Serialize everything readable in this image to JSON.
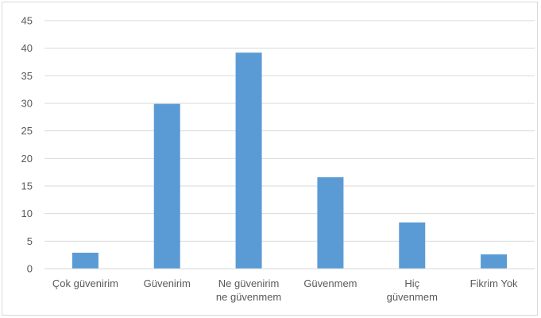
{
  "chart_data": {
    "type": "bar",
    "categories": [
      [
        "Çok güvenirim"
      ],
      [
        "Güvenirim"
      ],
      [
        "Ne güvenirim",
        "ne güvenmem"
      ],
      [
        "Güvenmem"
      ],
      [
        "Hiç",
        "güvenmem"
      ],
      [
        "Fikrim Yok"
      ]
    ],
    "values": [
      2.9,
      29.9,
      39.2,
      16.6,
      8.4,
      2.6
    ],
    "ylim": [
      0,
      45
    ],
    "yticks": [
      0,
      5,
      10,
      15,
      20,
      25,
      30,
      35,
      40,
      45
    ],
    "grid": true,
    "bar_color": "#5b9bd5",
    "grid_color": "#d9d9d9"
  }
}
